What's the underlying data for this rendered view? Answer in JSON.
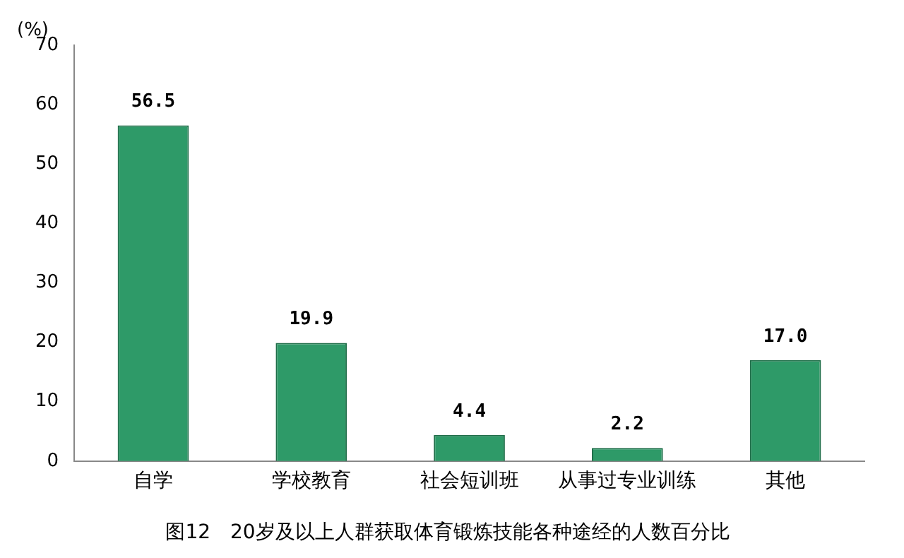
{
  "chart_data": {
    "type": "bar",
    "title": "图12　20岁及以上人群获取体育锻炼技能各种途经的人数百分比",
    "ylabel": "(%)",
    "categories": [
      "自学",
      "学校教育",
      "社会短训班",
      "从事过专业训练",
      "其他"
    ],
    "values": [
      56.5,
      19.9,
      4.4,
      2.2,
      17.0
    ],
    "value_labels": [
      "56.5",
      "19.9",
      "4.4",
      "2.2",
      "17.0"
    ],
    "color": "#2e9a68",
    "ylim": [
      0,
      70
    ],
    "yticks": [
      0,
      10,
      20,
      30,
      40,
      50,
      60,
      70
    ],
    "grid": false,
    "legend": false
  }
}
